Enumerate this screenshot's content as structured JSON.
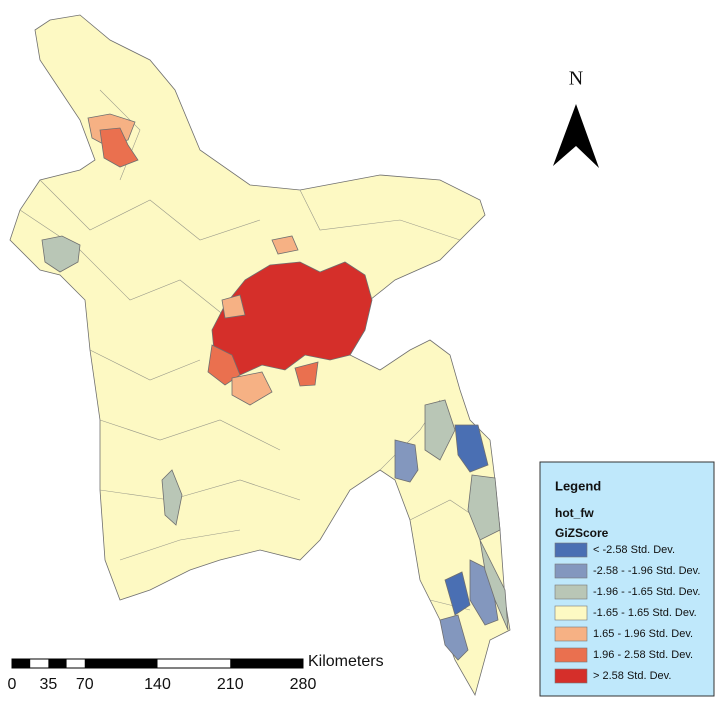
{
  "north_arrow": {
    "label": "N"
  },
  "scale_bar": {
    "unit": "Kilometers",
    "ticks": [
      0,
      35,
      70,
      140,
      210,
      280
    ]
  },
  "legend": {
    "title": "Legend",
    "layer": "hot_fw",
    "field": "GiZScore",
    "classes": [
      {
        "label": "< -2.58 Std. Dev.",
        "color": "#4a6fb3"
      },
      {
        "label": "-2.58 - -1.96 Std. Dev.",
        "color": "#8397be"
      },
      {
        "label": "-1.96 - -1.65 Std. Dev.",
        "color": "#b9c6b6"
      },
      {
        "label": "-1.65 - 1.65 Std. Dev.",
        "color": "#fdf9c3"
      },
      {
        "label": "1.65 - 1.96 Std. Dev.",
        "color": "#f6b184"
      },
      {
        "label": "1.96 - 2.58 Std. Dev.",
        "color": "#ea704f"
      },
      {
        "label": "> 2.58 Std. Dev.",
        "color": "#d52f2a"
      }
    ]
  }
}
